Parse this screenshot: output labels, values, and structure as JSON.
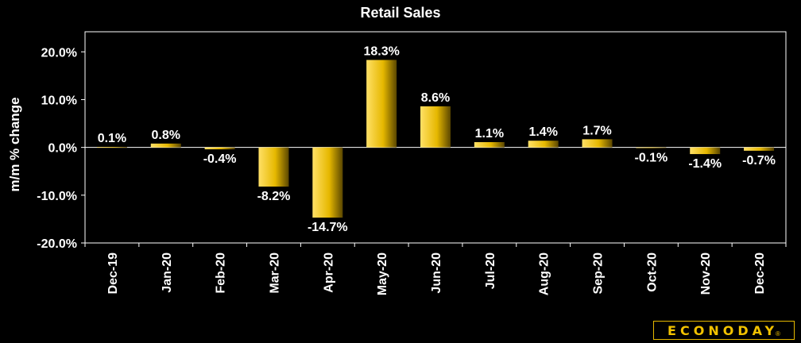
{
  "chart_data": {
    "type": "bar",
    "title": "Retail Sales",
    "ylabel": "m/m % change",
    "xlabel": "",
    "categories": [
      "Dec-19",
      "Jan-20",
      "Feb-20",
      "Mar-20",
      "Apr-20",
      "May-20",
      "Jun-20",
      "Jul-20",
      "Aug-20",
      "Sep-20",
      "Oct-20",
      "Nov-20",
      "Dec-20"
    ],
    "values": [
      0.1,
      0.8,
      -0.4,
      -8.2,
      -14.7,
      18.3,
      8.6,
      1.1,
      1.4,
      1.7,
      -0.1,
      -1.4,
      -0.7
    ],
    "data_labels": [
      "0.1%",
      "0.8%",
      "-0.4%",
      "-8.2%",
      "-14.7%",
      "18.3%",
      "8.6%",
      "1.1%",
      "1.4%",
      "1.7%",
      "-0.1%",
      "-1.4%",
      "-0.7%"
    ],
    "yticks": [
      20,
      10,
      0,
      -10,
      -20
    ],
    "ytick_labels": [
      "20.0%",
      "10.0%",
      "0.0%",
      "-10.0%",
      "-20.0%"
    ],
    "ylim": [
      -20,
      24
    ],
    "grid": false,
    "legend": "none",
    "colors": {
      "bar_light": "#ffe066",
      "bar_mid": "#e6b800",
      "bar_dark": "#5a4600",
      "background": "#000000",
      "axis": "#ffffff"
    }
  },
  "logo": {
    "text": "ECONODAY",
    "mark": "®"
  }
}
